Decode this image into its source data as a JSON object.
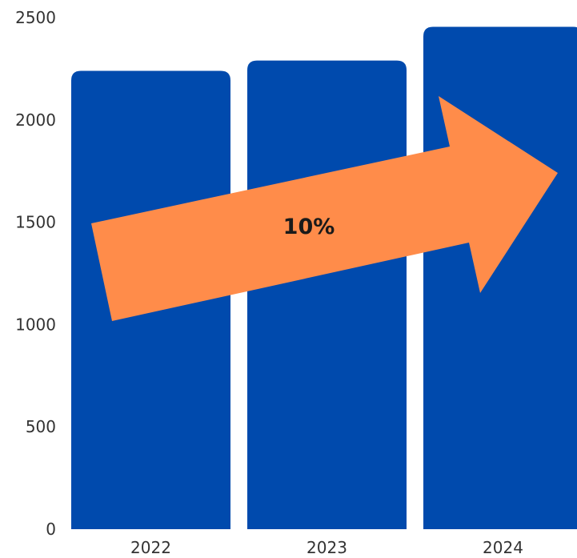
{
  "chart_data": {
    "type": "bar",
    "categories": [
      "2022",
      "2023",
      "2024"
    ],
    "values": [
      2240,
      2290,
      2455
    ],
    "title": "",
    "xlabel": "",
    "ylabel": "",
    "ylim": [
      0,
      2500
    ],
    "yticks": [
      0,
      500,
      1000,
      1500,
      2000,
      2500
    ],
    "grid": false,
    "bar_color": "#004AAD",
    "annotation": {
      "text": "10%",
      "shape": "arrow",
      "color": "#FF8C4A"
    }
  }
}
